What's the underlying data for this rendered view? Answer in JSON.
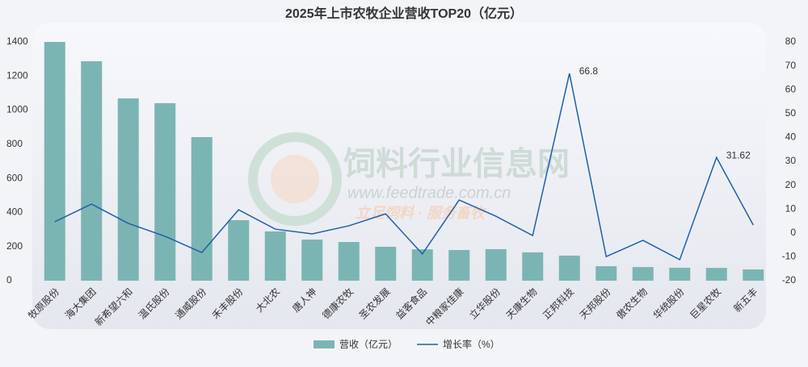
{
  "chart_data": {
    "type": "bar_line",
    "title": "2025年上市农牧企业营收TOP20（亿元）",
    "categories": [
      "牧原股份",
      "海大集团",
      "新希望六和",
      "温氏股份",
      "通威股份",
      "禾丰股份",
      "大北农",
      "唐人神",
      "德康农牧",
      "圣农发展",
      "益客食品",
      "中粮家佳康",
      "立华股份",
      "天康生物",
      "正邦科技",
      "天邦股份",
      "傲农生物",
      "华统股份",
      "巨星农牧",
      "新五丰"
    ],
    "series": [
      {
        "name": "营收（亿元）",
        "type": "bar",
        "color": "#7bb5b3",
        "values": [
          1400,
          1287,
          1069,
          1041,
          842,
          355,
          289,
          241,
          227,
          199,
          184,
          180,
          185,
          166,
          147,
          85,
          80,
          76,
          75,
          66
        ]
      },
      {
        "name": "增长率（%）",
        "type": "line",
        "axis": "y2",
        "color": "#1f5fa8",
        "values": [
          4.7,
          12.1,
          4.0,
          -1.4,
          -8.2,
          9.7,
          1.6,
          -0.4,
          3.0,
          8.0,
          -8.8,
          13.8,
          7.0,
          -1.1,
          66.8,
          -9.9,
          -3.1,
          -11.2,
          31.62,
          3.3
        ],
        "value_labels": [
          null,
          null,
          null,
          null,
          null,
          null,
          null,
          null,
          null,
          null,
          null,
          null,
          null,
          null,
          "66.8",
          null,
          null,
          null,
          "31.62",
          null
        ]
      }
    ],
    "ylim": [
      0,
      1400
    ],
    "yticks": [
      0,
      200,
      400,
      600,
      800,
      1000,
      1200,
      1400
    ],
    "y2lim": [
      -20,
      80
    ],
    "y2ticks": [
      -20,
      -10,
      0,
      10,
      20,
      30,
      40,
      50,
      60,
      70,
      80
    ],
    "watermark": {
      "name": "饲料行业信息网",
      "url": "www.feedtrade.com.cn",
      "slogan": "立足饲料 · 服务畜牧"
    }
  }
}
